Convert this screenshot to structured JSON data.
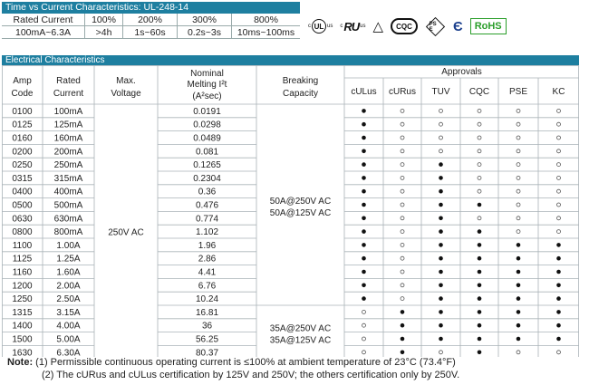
{
  "tvc": {
    "title": "Time vs Current Characteristics: UL-248-14",
    "header": [
      "Rated Current",
      "100%",
      "200%",
      "300%",
      "800%"
    ],
    "row": [
      "100mA~6.3A",
      ">4h",
      "1s~60s",
      "0.2s~3s",
      "10ms~100ms"
    ]
  },
  "certs": {
    "ul_c": "c",
    "ul_mark": "UL",
    "ul_us": "us",
    "ru_c": "c",
    "ru_mark": "RU",
    "ru_us": "us",
    "cqc": "CQC",
    "pse": "PS E",
    "rohs": "RoHS"
  },
  "ec": {
    "title": "Electrical Characteristics",
    "approvals_label": "Approvals",
    "headers": {
      "amp_code": [
        "Amp",
        "Code"
      ],
      "rated_current": [
        "Rated",
        "Current"
      ],
      "max_voltage": [
        "Max.",
        "Voltage"
      ],
      "melting": [
        "Nominal",
        "Melting I²t",
        "(A²sec)"
      ],
      "breaking": [
        "Breaking",
        "Capacity"
      ],
      "approvals": [
        "cULus",
        "cURus",
        "TUV",
        "CQC",
        "PSE",
        "KC"
      ]
    },
    "max_voltage_value": "250V AC",
    "breaking_1": [
      "50A@250V AC",
      "50A@125V AC"
    ],
    "breaking_2": [
      "35A@250V AC",
      "35A@125V AC"
    ],
    "rows": [
      {
        "code": "0100",
        "current": "100mA",
        "i2t": "0.0191",
        "approvals": [
          1,
          0,
          0,
          0,
          0,
          0
        ]
      },
      {
        "code": "0125",
        "current": "125mA",
        "i2t": "0.0298",
        "approvals": [
          1,
          0,
          0,
          0,
          0,
          0
        ]
      },
      {
        "code": "0160",
        "current": "160mA",
        "i2t": "0.0489",
        "approvals": [
          1,
          0,
          0,
          0,
          0,
          0
        ]
      },
      {
        "code": "0200",
        "current": "200mA",
        "i2t": "0.081",
        "approvals": [
          1,
          0,
          0,
          0,
          0,
          0
        ]
      },
      {
        "code": "0250",
        "current": "250mA",
        "i2t": "0.1265",
        "approvals": [
          1,
          0,
          1,
          0,
          0,
          0
        ]
      },
      {
        "code": "0315",
        "current": "315mA",
        "i2t": "0.2304",
        "approvals": [
          1,
          0,
          1,
          0,
          0,
          0
        ]
      },
      {
        "code": "0400",
        "current": "400mA",
        "i2t": "0.36",
        "approvals": [
          1,
          0,
          1,
          0,
          0,
          0
        ]
      },
      {
        "code": "0500",
        "current": "500mA",
        "i2t": "0.476",
        "approvals": [
          1,
          0,
          1,
          1,
          0,
          0
        ]
      },
      {
        "code": "0630",
        "current": "630mA",
        "i2t": "0.774",
        "approvals": [
          1,
          0,
          1,
          0,
          0,
          0
        ]
      },
      {
        "code": "0800",
        "current": "800mA",
        "i2t": "1.102",
        "approvals": [
          1,
          0,
          1,
          1,
          0,
          0
        ]
      },
      {
        "code": "1100",
        "current": "1.00A",
        "i2t": "1.96",
        "approvals": [
          1,
          0,
          1,
          1,
          1,
          1
        ]
      },
      {
        "code": "1125",
        "current": "1.25A",
        "i2t": "2.86",
        "approvals": [
          1,
          0,
          1,
          1,
          1,
          1
        ]
      },
      {
        "code": "1160",
        "current": "1.60A",
        "i2t": "4.41",
        "approvals": [
          1,
          0,
          1,
          1,
          1,
          1
        ]
      },
      {
        "code": "1200",
        "current": "2.00A",
        "i2t": "6.76",
        "approvals": [
          1,
          0,
          1,
          1,
          1,
          1
        ]
      },
      {
        "code": "1250",
        "current": "2.50A",
        "i2t": "10.24",
        "approvals": [
          1,
          0,
          1,
          1,
          1,
          1
        ]
      },
      {
        "code": "1315",
        "current": "3.15A",
        "i2t": "16.81",
        "approvals": [
          0,
          1,
          1,
          1,
          1,
          1
        ]
      },
      {
        "code": "1400",
        "current": "4.00A",
        "i2t": "36",
        "approvals": [
          0,
          1,
          1,
          1,
          1,
          1
        ]
      },
      {
        "code": "1500",
        "current": "5.00A",
        "i2t": "56.25",
        "approvals": [
          0,
          1,
          1,
          1,
          1,
          1
        ]
      },
      {
        "code": "1630",
        "current": "6.30A",
        "i2t": "80.37",
        "approvals": [
          0,
          1,
          0,
          1,
          0,
          0
        ]
      }
    ]
  },
  "notes": {
    "label": "Note:",
    "line1": "(1) Permissible continuous       operating current  is ≤100% at ambient temperature of 23°C (73.4°F)",
    "line2": "(2) The cURus and cULus certification by 125V and 250V; the others certification only by 250V."
  }
}
